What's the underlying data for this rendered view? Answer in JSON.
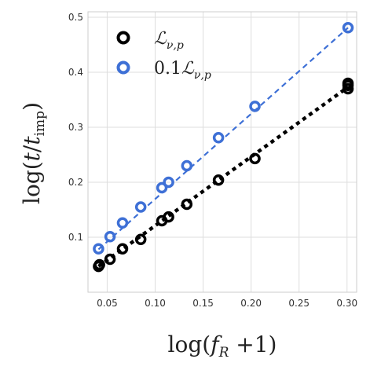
{
  "chart_data": {
    "type": "scatter",
    "xlabel": "log(f_R +1)",
    "ylabel": "log(t/t_imp)",
    "xlim": [
      0.03,
      0.31
    ],
    "ylim": [
      0.0,
      0.51
    ],
    "xticks": [
      0.05,
      0.1,
      0.15,
      0.2,
      0.25,
      0.3
    ],
    "xtick_labels": [
      "0.05",
      "0.10",
      "0.15",
      "0.20",
      "0.25",
      "0.30"
    ],
    "yticks": [
      0.1,
      0.2,
      0.3,
      0.4,
      0.5
    ],
    "ytick_labels": [
      "0.1",
      "0.2",
      "0.3",
      "0.4",
      "0.5"
    ],
    "grid": true,
    "legend_position": "top-left",
    "series": [
      {
        "name": "L_{ν,p}",
        "color": "#000000",
        "marker": "open-circle",
        "fit_line": "dotted",
        "fit": [
          [
            0.041,
            0.047
          ],
          [
            0.301,
            0.373
          ]
        ],
        "x": [
          0.041,
          0.042,
          0.053,
          0.066,
          0.085,
          0.107,
          0.114,
          0.133,
          0.166,
          0.204,
          0.301,
          0.301,
          0.301
        ],
        "y": [
          0.047,
          0.05,
          0.06,
          0.079,
          0.096,
          0.13,
          0.137,
          0.16,
          0.204,
          0.243,
          0.37,
          0.376,
          0.38
        ]
      },
      {
        "name": "0.1L_{ν,p}",
        "color": "#3e70d6",
        "marker": "open-circle",
        "fit_line": "dashed",
        "fit": [
          [
            0.041,
            0.078
          ],
          [
            0.301,
            0.481
          ]
        ],
        "x": [
          0.041,
          0.053,
          0.066,
          0.085,
          0.107,
          0.114,
          0.133,
          0.166,
          0.204,
          0.301
        ],
        "y": [
          0.079,
          0.101,
          0.126,
          0.155,
          0.19,
          0.2,
          0.23,
          0.281,
          0.338,
          0.481
        ]
      }
    ]
  }
}
